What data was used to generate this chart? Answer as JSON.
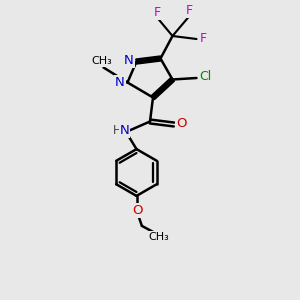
{
  "bg_color": "#e8e8e8",
  "bond_color": "#000000",
  "N_color": "#0000cc",
  "O_color": "#cc0000",
  "F_color": "#cc00cc",
  "Cl_color": "#008800",
  "H_color": "#444444",
  "line_width": 1.8,
  "figsize": [
    3.0,
    3.0
  ],
  "dpi": 100,
  "xlim": [
    0,
    10
  ],
  "ylim": [
    0,
    10
  ]
}
